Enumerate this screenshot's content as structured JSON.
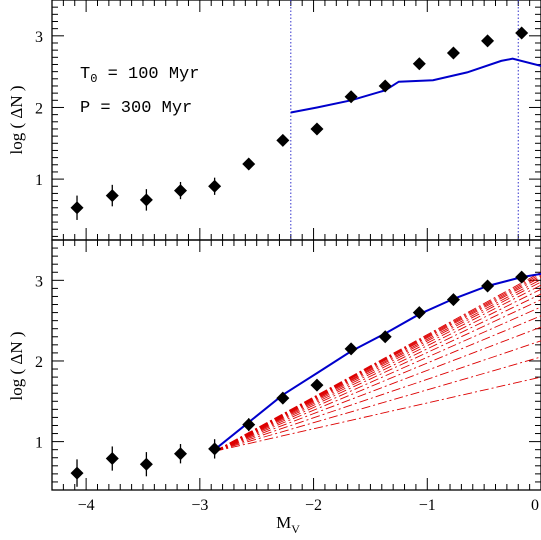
{
  "chart_data": [
    {
      "type": "scatter",
      "xlabel_main": "M",
      "xlabel_sub": "V",
      "ylabel": "log ( ΔN )",
      "xlim": [
        -4.3,
        0.0
      ],
      "ylim": [
        0.15,
        3.5
      ],
      "yticks": [
        1,
        2,
        3
      ],
      "annotations": [
        {
          "main": "T",
          "sub": "0",
          "rest": " = 100 Myr"
        },
        {
          "main": "P",
          "sub": "",
          "rest": " = 300 Myr"
        }
      ],
      "vlines": [
        -2.2,
        -0.2
      ],
      "series": [
        {
          "kind": "points_errorbars",
          "x": [
            -4.08,
            -3.77,
            -3.47,
            -3.17,
            -2.87,
            -2.57,
            -2.27,
            -1.97,
            -1.67,
            -1.37,
            -1.07,
            -0.77,
            -0.47,
            -0.17
          ],
          "y": [
            0.6,
            0.77,
            0.71,
            0.84,
            0.9,
            1.21,
            1.54,
            1.7,
            2.15,
            2.3,
            2.61,
            2.76,
            2.93,
            3.04
          ],
          "err": [
            0.17,
            0.15,
            0.15,
            0.12,
            0.12,
            0.08,
            0.05,
            0.04,
            0.03,
            0.03,
            0.02,
            0.02,
            0.02,
            0.02
          ]
        },
        {
          "kind": "line",
          "color": "#0000cc",
          "x": [
            -2.2,
            -1.97,
            -1.67,
            -1.37,
            -1.25,
            -0.95,
            -0.65,
            -0.35,
            -0.25,
            0.0
          ],
          "y": [
            1.93,
            2.0,
            2.1,
            2.24,
            2.36,
            2.38,
            2.49,
            2.65,
            2.68,
            2.58
          ]
        }
      ]
    },
    {
      "type": "scatter",
      "xlabel_main": "M",
      "xlabel_sub": "V",
      "ylabel": "log ( ΔN )",
      "xlim": [
        -4.3,
        0.0
      ],
      "ylim": [
        0.4,
        3.5
      ],
      "xticks": [
        -4,
        -3,
        -2,
        -1,
        0
      ],
      "yticks": [
        1,
        2,
        3
      ],
      "series": [
        {
          "kind": "points_errorbars",
          "x": [
            -4.08,
            -3.77,
            -3.47,
            -3.17,
            -2.87,
            -2.57,
            -2.27,
            -1.97,
            -1.67,
            -1.37,
            -1.07,
            -0.77,
            -0.47,
            -0.17
          ],
          "y": [
            0.61,
            0.79,
            0.72,
            0.85,
            0.91,
            1.21,
            1.54,
            1.7,
            2.15,
            2.3,
            2.6,
            2.76,
            2.93,
            3.04
          ],
          "err": [
            0.17,
            0.15,
            0.15,
            0.12,
            0.12,
            0.08,
            0.05,
            0.04,
            0.03,
            0.03,
            0.02,
            0.02,
            0.02,
            0.02
          ]
        },
        {
          "kind": "line",
          "color": "#0000cc",
          "x": [
            -2.87,
            -2.57,
            -2.27,
            -1.97,
            -1.67,
            -1.37,
            -1.07,
            -0.77,
            -0.47,
            -0.17,
            0.0
          ],
          "y": [
            0.9,
            1.24,
            1.58,
            1.85,
            2.12,
            2.34,
            2.58,
            2.77,
            2.93,
            3.04,
            3.08
          ]
        },
        {
          "kind": "fan",
          "color": "#dd0000",
          "x0": -2.87,
          "y0": 0.88,
          "x1": 0.0,
          "y1_ends": [
            1.8,
            2.05,
            2.25,
            2.42,
            2.56,
            2.67,
            2.76,
            2.83,
            2.89,
            2.94,
            2.98,
            3.01,
            3.04,
            3.06,
            3.08,
            3.1
          ]
        }
      ]
    }
  ]
}
